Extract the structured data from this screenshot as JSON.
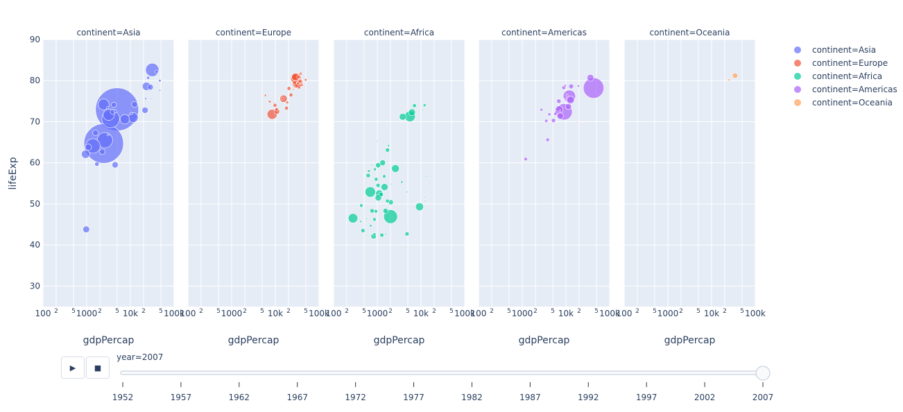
{
  "chart_data": {
    "type": "scatter",
    "subtype": "bubble-faceted",
    "xlabel": "gdpPercap",
    "ylabel": "lifeExp",
    "x_scale": "log",
    "xlim": [
      100,
      100000
    ],
    "ylim": [
      25,
      90
    ],
    "x_ticks": [
      {
        "v": 100,
        "label": "100"
      },
      {
        "v": 200,
        "label": "2"
      },
      {
        "v": 500,
        "label": "5"
      },
      {
        "v": 1000,
        "label": "1000"
      },
      {
        "v": 2000,
        "label": "2"
      },
      {
        "v": 5000,
        "label": "5"
      },
      {
        "v": 10000,
        "label": "10k"
      },
      {
        "v": 20000,
        "label": "2"
      },
      {
        "v": 50000,
        "label": "5"
      },
      {
        "v": 100000,
        "label": "100k"
      }
    ],
    "y_ticks": [
      30,
      40,
      50,
      60,
      70,
      80,
      90
    ],
    "grid": true,
    "legend_position": "right",
    "size_variable": "pop (millions)",
    "facets": [
      {
        "title": "continent=Asia",
        "legend": "continent=Asia",
        "color": "#636efa",
        "points": [
          [
            974.6,
            43.8,
            31.9
          ],
          [
            29796,
            75.6,
            0.71
          ],
          [
            1391,
            64.1,
            150
          ],
          [
            1714,
            59.7,
            14
          ],
          [
            4959,
            73.0,
            1318
          ],
          [
            39725,
            82.2,
            6.98
          ],
          [
            2452,
            64.7,
            1110
          ],
          [
            3541,
            70.7,
            223
          ],
          [
            11606,
            71.0,
            69
          ],
          [
            4471,
            59.5,
            27.5
          ],
          [
            25523,
            80.7,
            6.4
          ],
          [
            31656,
            82.6,
            127
          ],
          [
            4519,
            72.5,
            6
          ],
          [
            1593,
            67.3,
            23
          ],
          [
            23348,
            78.6,
            49
          ],
          [
            47307,
            77.6,
            2.5
          ],
          [
            10461,
            72.0,
            3.9
          ],
          [
            12452,
            74.2,
            24.8
          ],
          [
            3096,
            66.8,
            2.9
          ],
          [
            944,
            62.1,
            47.8
          ],
          [
            1091,
            63.8,
            28.9
          ],
          [
            22316,
            75.6,
            3.2
          ],
          [
            2606,
            65.5,
            169
          ],
          [
            3190,
            71.7,
            91
          ],
          [
            21655,
            72.8,
            27.6
          ],
          [
            47143,
            80.0,
            4.5
          ],
          [
            3970,
            72.4,
            20
          ],
          [
            4185,
            74.1,
            19
          ],
          [
            28718,
            78.4,
            23
          ],
          [
            7458,
            70.6,
            65
          ],
          [
            2442,
            74.2,
            85
          ],
          [
            3025,
            73.4,
            4
          ],
          [
            2281,
            62.7,
            22
          ]
        ]
      },
      {
        "title": "continent=Europe",
        "legend": "continent=Europe",
        "color": "#ef553b",
        "points": [
          [
            5937,
            76.4,
            3.6
          ],
          [
            36126,
            79.8,
            8.2
          ],
          [
            33693,
            79.4,
            10.4
          ],
          [
            7446,
            74.9,
            4.6
          ],
          [
            10681,
            73.0,
            7.3
          ],
          [
            14619,
            75.7,
            4.5
          ],
          [
            22833,
            76.5,
            10.2
          ],
          [
            35278,
            78.3,
            5.5
          ],
          [
            33207,
            79.3,
            5.2
          ],
          [
            30470,
            80.7,
            61
          ],
          [
            32170,
            79.4,
            82.4
          ],
          [
            27538,
            79.5,
            10.7
          ],
          [
            18009,
            73.3,
            10
          ],
          [
            36181,
            81.8,
            0.3
          ],
          [
            40676,
            78.9,
            4.1
          ],
          [
            28570,
            80.5,
            58
          ],
          [
            9254,
            74.5,
            0.68
          ],
          [
            36798,
            79.8,
            16.6
          ],
          [
            49357,
            80.2,
            4.6
          ],
          [
            15390,
            75.6,
            38.5
          ],
          [
            20510,
            78.1,
            10.6
          ],
          [
            10808,
            72.5,
            22.3
          ],
          [
            9787,
            74.0,
            10.2
          ],
          [
            18678,
            74.7,
            5.4
          ],
          [
            25768,
            77.9,
            2
          ],
          [
            28821,
            80.9,
            40.4
          ],
          [
            33860,
            80.9,
            9
          ],
          [
            37506,
            81.7,
            7.6
          ],
          [
            8458,
            71.8,
            71
          ],
          [
            33203,
            79.4,
            60.8
          ]
        ]
      },
      {
        "title": "continent=Africa",
        "legend": "continent=Africa",
        "color": "#00cc96",
        "points": [
          [
            6223,
            72.3,
            33.3
          ],
          [
            4797,
            42.7,
            12.4
          ],
          [
            1441,
            56.7,
            8
          ],
          [
            12570,
            50.7,
            1.6
          ],
          [
            1217,
            52.3,
            14.3
          ],
          [
            430,
            49.6,
            8.4
          ],
          [
            2042,
            50.4,
            17.7
          ],
          [
            706,
            44.7,
            4.4
          ],
          [
            1704,
            50.7,
            10.2
          ],
          [
            986,
            65.2,
            0.7
          ],
          [
            278,
            46.5,
            64.6
          ],
          [
            3633,
            55.3,
            3.8
          ],
          [
            1545,
            48.3,
            18
          ],
          [
            2082,
            54.8,
            0.5
          ],
          [
            5581,
            71.3,
            80.3
          ],
          [
            12154,
            51.6,
            0.55
          ],
          [
            641,
            58.0,
            4.9
          ],
          [
            691,
            52.9,
            76.5
          ],
          [
            13206,
            56.7,
            1.45
          ],
          [
            753,
            59.4,
            1.7
          ],
          [
            1328,
            60.0,
            22.9
          ],
          [
            943,
            56.0,
            9.9
          ],
          [
            579,
            46.4,
            1.5
          ],
          [
            1463,
            54.1,
            35.6
          ],
          [
            1569,
            42.6,
            2
          ],
          [
            415,
            45.7,
            3.2
          ],
          [
            12057,
            74.0,
            6
          ],
          [
            1045,
            59.4,
            19.2
          ],
          [
            759,
            48.3,
            13.3
          ],
          [
            1042,
            54.5,
            12
          ],
          [
            1803,
            64.2,
            3.3
          ],
          [
            10957,
            72.8,
            1.25
          ],
          [
            3820,
            71.2,
            33.8
          ],
          [
            824,
            42.1,
            20
          ],
          [
            4811,
            52.9,
            2
          ],
          [
            620,
            56.9,
            12.9
          ],
          [
            2014,
            46.9,
            135
          ],
          [
            863,
            46.2,
            8.9
          ],
          [
            1712,
            63.1,
            12.3
          ],
          [
            863,
            42.6,
            6.1
          ],
          [
            926,
            48.2,
            9.1
          ],
          [
            9270,
            49.3,
            44
          ],
          [
            2602,
            58.6,
            42.3
          ],
          [
            4513,
            39.6,
            1.1
          ],
          [
            1107,
            52.5,
            38.1
          ],
          [
            883,
            58.4,
            5.7
          ],
          [
            7093,
            73.9,
            10.3
          ],
          [
            1056,
            51.5,
            29.2
          ],
          [
            1271,
            42.4,
            11.7
          ],
          [
            470,
            43.5,
            12.3
          ]
        ]
      },
      {
        "title": "continent=Americas",
        "legend": "continent=Americas",
        "color": "#ab63fa",
        "points": [
          [
            12779,
            75.3,
            40.3
          ],
          [
            3822,
            65.6,
            9.1
          ],
          [
            9066,
            72.4,
            190
          ],
          [
            36319,
            80.7,
            33.4
          ],
          [
            13172,
            78.6,
            16.3
          ],
          [
            7007,
            72.9,
            44.2
          ],
          [
            9645,
            78.8,
            4.1
          ],
          [
            8948,
            78.3,
            11.4
          ],
          [
            6025,
            72.2,
            9.3
          ],
          [
            6873,
            75.0,
            13.8
          ],
          [
            5728,
            71.9,
            6.9
          ],
          [
            5186,
            70.3,
            12.6
          ],
          [
            1202,
            60.9,
            8.5
          ],
          [
            3548,
            70.2,
            7.5
          ],
          [
            7321,
            72.6,
            2.8
          ],
          [
            11978,
            76.2,
            108.7
          ],
          [
            2749,
            72.9,
            5.7
          ],
          [
            9809,
            75.5,
            3.2
          ],
          [
            4173,
            71.8,
            6.7
          ],
          [
            7409,
            71.4,
            28.7
          ],
          [
            19329,
            78.7,
            4
          ],
          [
            18009,
            69.8,
            1.06
          ],
          [
            42952,
            78.2,
            301
          ],
          [
            10611,
            76.4,
            3.4
          ],
          [
            11416,
            73.7,
            26
          ]
        ]
      },
      {
        "title": "continent=Oceania",
        "legend": "continent=Oceania",
        "color": "#ffa15a",
        "points": [
          [
            34435,
            81.2,
            20.4
          ],
          [
            25185,
            80.2,
            4.1
          ]
        ]
      }
    ]
  },
  "animation": {
    "current_label": "year=2007",
    "current_year": 2007,
    "years": [
      "1952",
      "1957",
      "1962",
      "1967",
      "1972",
      "1977",
      "1982",
      "1987",
      "1992",
      "1997",
      "2002",
      "2007"
    ],
    "play_icon": "play-icon",
    "stop_icon": "stop-icon"
  }
}
